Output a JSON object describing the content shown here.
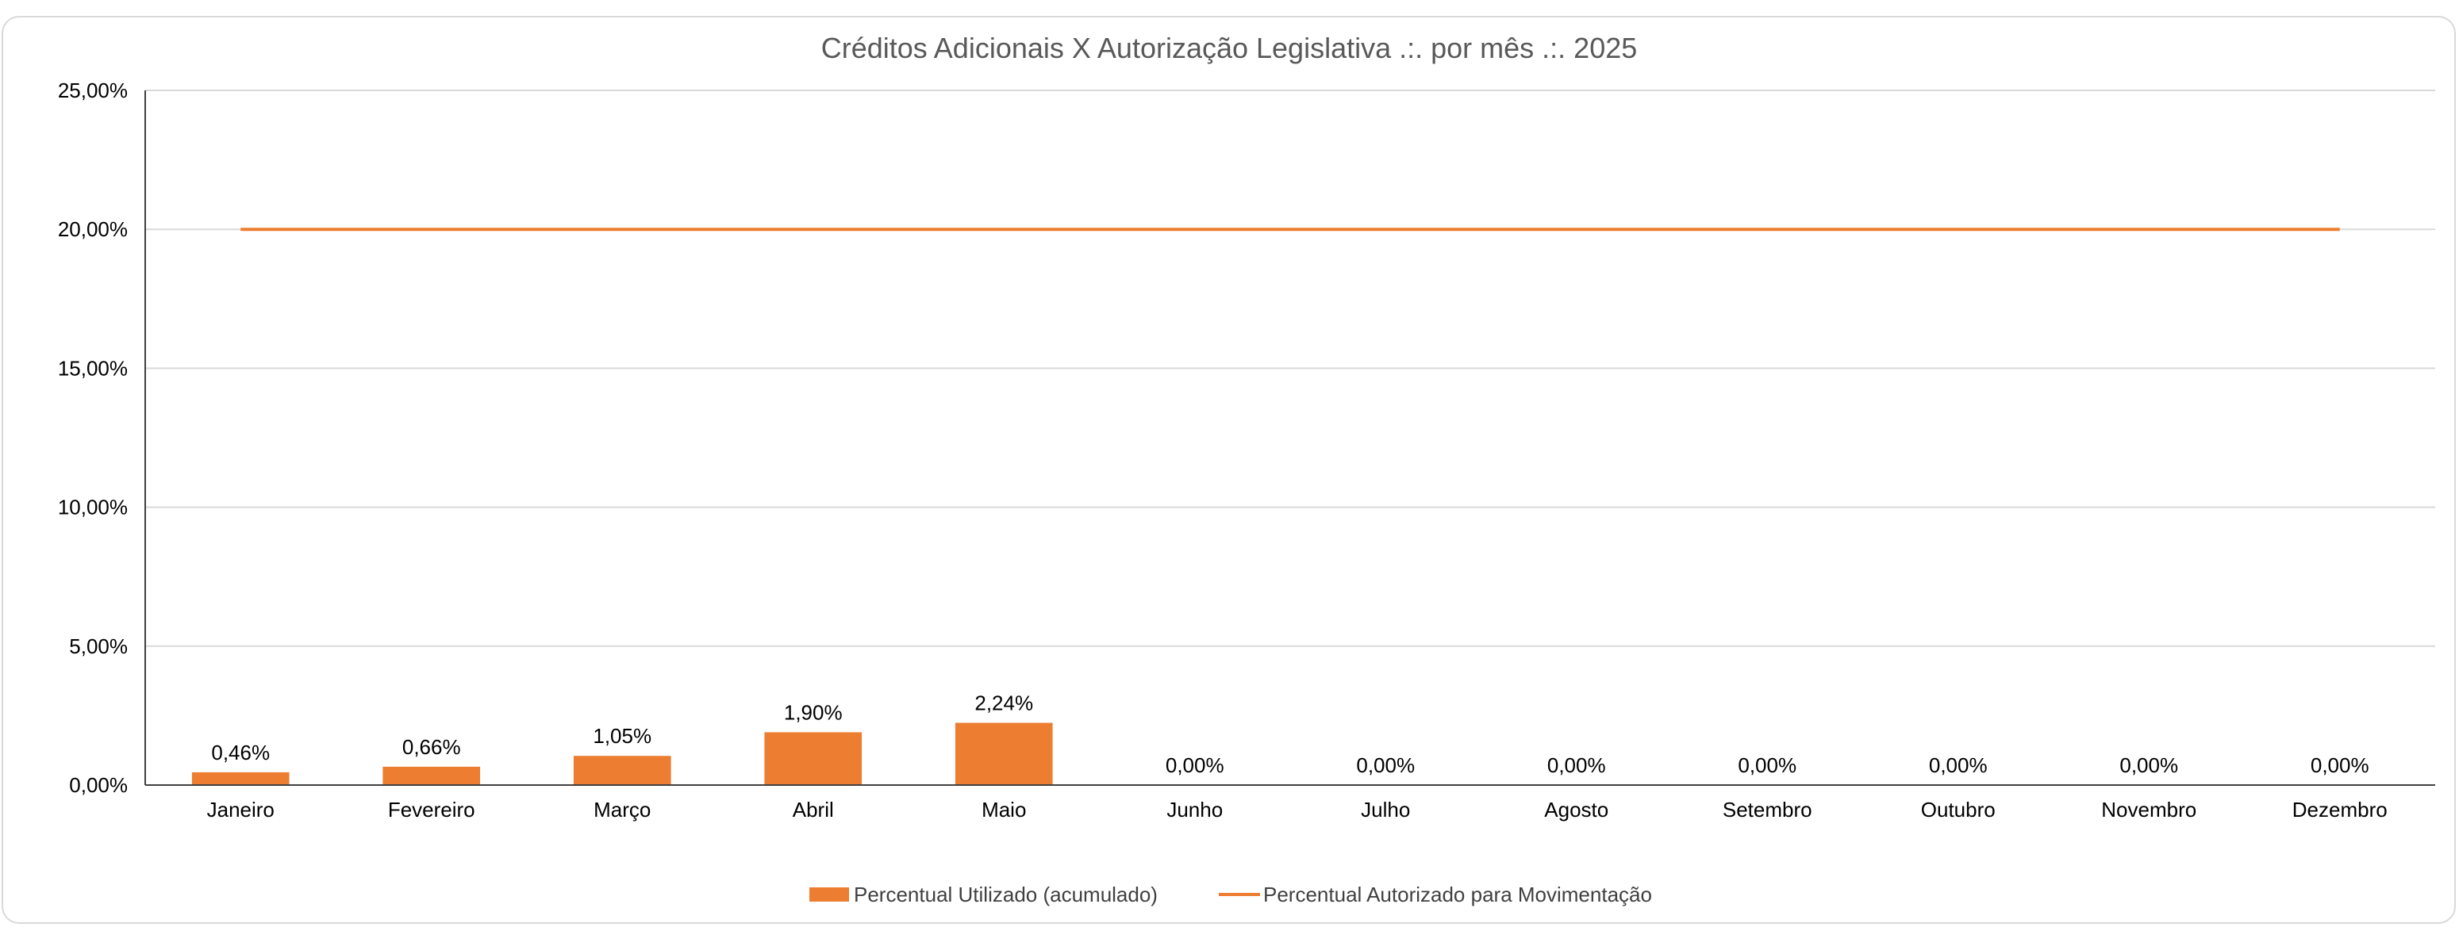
{
  "chart_data": {
    "type": "bar",
    "title": "Créditos Adicionais X Autorização Legislativa .:. por mês .:. 2025",
    "categories": [
      "Janeiro",
      "Fevereiro",
      "Março",
      "Abril",
      "Maio",
      "Junho",
      "Julho",
      "Agosto",
      "Setembro",
      "Outubro",
      "Novembro",
      "Dezembro"
    ],
    "series": [
      {
        "name": "Percentual Utilizado (acumulado)",
        "type": "bar",
        "color": "#ed7d31",
        "values": [
          0.46,
          0.66,
          1.05,
          1.9,
          2.24,
          0.0,
          0.0,
          0.0,
          0.0,
          0.0,
          0.0,
          0.0
        ],
        "labels": [
          "0,46%",
          "0,66%",
          "1,05%",
          "1,90%",
          "2,24%",
          "0,00%",
          "0,00%",
          "0,00%",
          "0,00%",
          "0,00%",
          "0,00%",
          "0,00%"
        ]
      },
      {
        "name": "Percentual Autorizado para Movimentação",
        "type": "line",
        "color": "#ed7d31",
        "values": [
          20,
          20,
          20,
          20,
          20,
          20,
          20,
          20,
          20,
          20,
          20,
          20
        ]
      }
    ],
    "ylim": [
      0,
      25
    ],
    "yticks": [
      0,
      5,
      10,
      15,
      20,
      25
    ],
    "ytick_labels": [
      "0,00%",
      "5,00%",
      "10,00%",
      "15,00%",
      "20,00%",
      "25,00%"
    ],
    "grid": true,
    "legend": "bottom"
  }
}
